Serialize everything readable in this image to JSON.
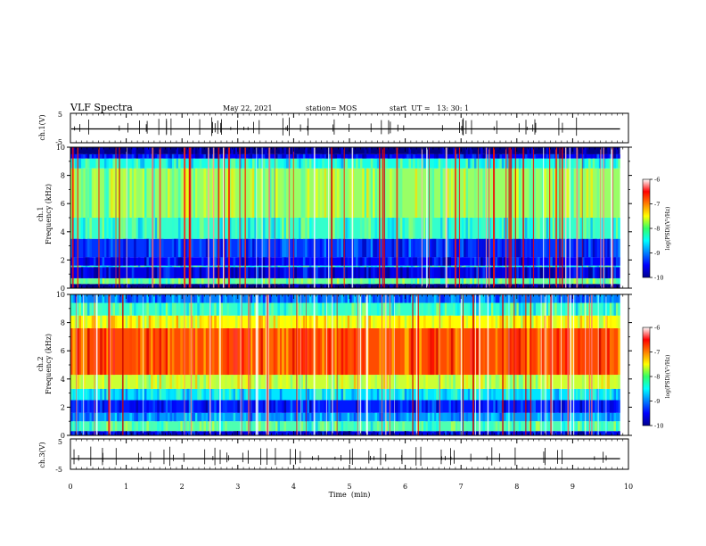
{
  "header": {
    "title": "VLF Spectra",
    "date": "May 22, 2021",
    "station": "station= MOS",
    "start": "start  UT =   13: 30: 1"
  },
  "chart_data": [
    {
      "type": "line",
      "panel": "ch.1 waveform",
      "ylabel": "ch.1(V)",
      "ylim": [
        -5,
        5
      ],
      "yticks": [
        "5",
        "-5"
      ],
      "xlim": [
        0,
        10
      ],
      "level": -0.3
    },
    {
      "type": "heatmap",
      "panel": "ch.1 spectrogram",
      "ylabel": "ch.1\nFrequency (kHz)",
      "ylim": [
        0,
        10
      ],
      "yticks": [
        "0",
        "2",
        "4",
        "6",
        "8",
        "10"
      ],
      "xlim": [
        0,
        9.85
      ],
      "colorbar": {
        "label": "log(PSD)(V²/Hz)",
        "range": [
          -10,
          -6
        ],
        "ticks": [
          "-6",
          "-7",
          "-8",
          "-9",
          "-10"
        ]
      },
      "bands": [
        {
          "f": [
            0,
            0.3
          ],
          "level": -10
        },
        {
          "f": [
            0.3,
            0.7
          ],
          "level": -8.1
        },
        {
          "f": [
            0.7,
            1.5
          ],
          "level": -9.6
        },
        {
          "f": [
            1.5,
            1.6
          ],
          "level": -8.4
        },
        {
          "f": [
            1.6,
            2.2
          ],
          "level": -9.5
        },
        {
          "f": [
            2.2,
            3.5
          ],
          "level": -9.3
        },
        {
          "f": [
            3.5,
            5.0
          ],
          "level": -8.3
        },
        {
          "f": [
            5.0,
            8.5
          ],
          "level": -7.9
        },
        {
          "f": [
            8.5,
            9.2
          ],
          "level": -8.4
        },
        {
          "f": [
            9.2,
            9.5
          ],
          "level": -9.5
        },
        {
          "f": [
            9.5,
            10
          ],
          "level": -10
        }
      ],
      "sferic_level": -6.3
    },
    {
      "type": "heatmap",
      "panel": "ch.2 spectrogram",
      "ylabel": "ch.2\nFrequency (kHz)",
      "ylim": [
        0,
        10
      ],
      "yticks": [
        "0",
        "2",
        "4",
        "6",
        "8",
        "10"
      ],
      "xlim": [
        0,
        9.85
      ],
      "colorbar": {
        "label": "log(PSD)(V²/Hz)",
        "range": [
          -10,
          -6
        ],
        "ticks": [
          "-6",
          "-7",
          "-8",
          "-9",
          "-10"
        ]
      },
      "bands": [
        {
          "f": [
            0,
            0.3
          ],
          "level": -9.6
        },
        {
          "f": [
            0.3,
            1.0
          ],
          "level": -8.2
        },
        {
          "f": [
            1.0,
            1.6
          ],
          "level": -8.9
        },
        {
          "f": [
            1.6,
            2.5
          ],
          "level": -9.4
        },
        {
          "f": [
            2.5,
            3.3
          ],
          "level": -8.6
        },
        {
          "f": [
            3.3,
            4.3
          ],
          "level": -7.7
        },
        {
          "f": [
            4.3,
            7.6
          ],
          "level": -6.8
        },
        {
          "f": [
            7.6,
            8.5
          ],
          "level": -7.5
        },
        {
          "f": [
            8.5,
            9.4
          ],
          "level": -8.3
        },
        {
          "f": [
            9.4,
            10
          ],
          "level": -9.0
        }
      ],
      "sferic_level": -6.1
    },
    {
      "type": "line",
      "panel": "ch.3 waveform",
      "ylabel": "ch.3(V)",
      "ylim": [
        -5,
        5
      ],
      "yticks": [
        "5",
        "-5"
      ],
      "xlim": [
        0,
        10
      ],
      "level": -1.5,
      "xlabel": "Time  (min)",
      "xticks": [
        "0",
        "1",
        "2",
        "3",
        "4",
        "5",
        "6",
        "7",
        "8",
        "9",
        "10"
      ]
    }
  ]
}
